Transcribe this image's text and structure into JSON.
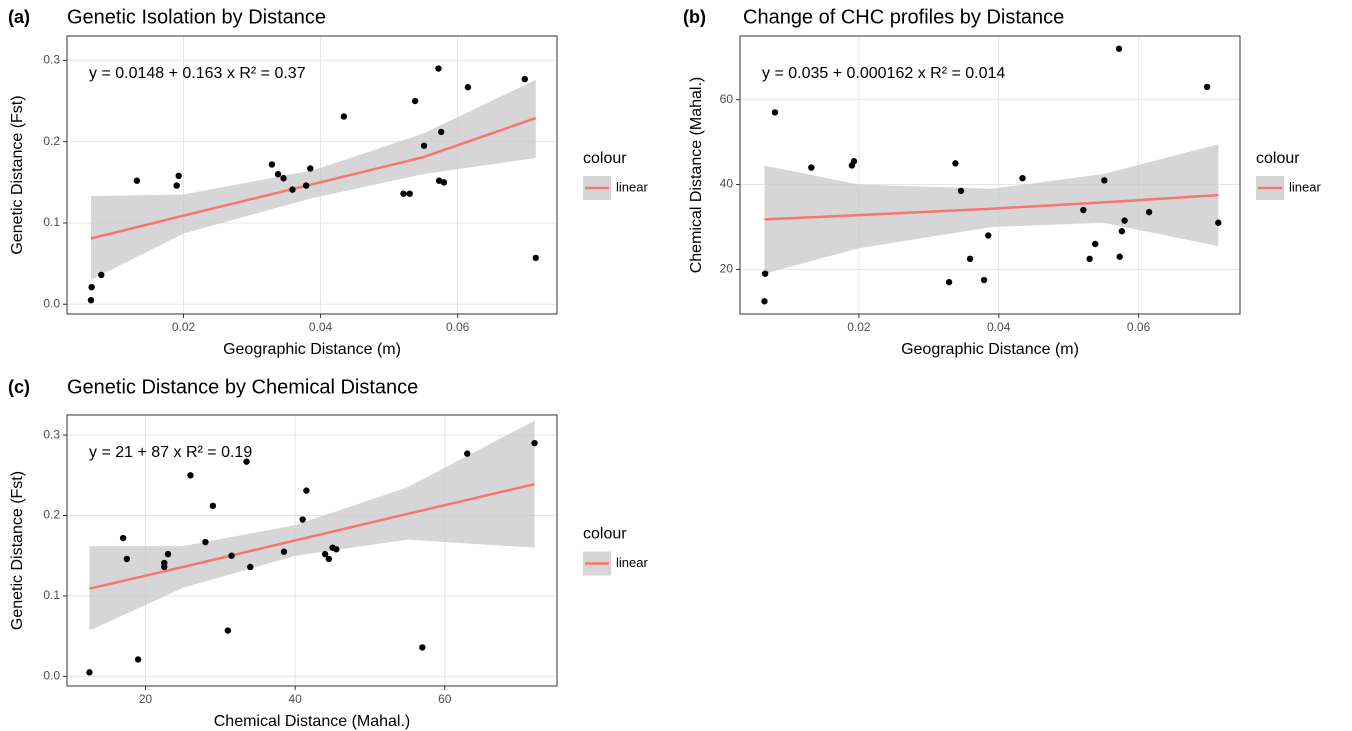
{
  "chart_data": [
    {
      "type": "scatter",
      "panel": "(a)",
      "title": "Genetic Isolation by Distance",
      "x_label": "Geographic Distance (m)",
      "y_label": "Genetic Distance (Fst)",
      "equation": "y = 0.0148 + 0.163 x   R² = 0.37",
      "x": [
        0.0065,
        0.0066,
        0.008,
        0.0132,
        0.019,
        0.0193,
        0.0329,
        0.0338,
        0.0346,
        0.0359,
        0.0379,
        0.0385,
        0.0434,
        0.0521,
        0.053,
        0.0538,
        0.0551,
        0.0572,
        0.0573,
        0.0576,
        0.058,
        0.0615,
        0.0698,
        0.0714
      ],
      "values": [
        0.005,
        0.021,
        0.036,
        0.152,
        0.146,
        0.158,
        0.172,
        0.16,
        0.155,
        0.141,
        0.146,
        0.167,
        0.231,
        0.136,
        0.136,
        0.25,
        0.195,
        0.29,
        0.152,
        0.212,
        0.15,
        0.267,
        0.277,
        0.057
      ],
      "color": "#000000",
      "fit": {
        "name": "linear",
        "color": "#f8766d",
        "x": [
          0.0065,
          0.02,
          0.039,
          0.055,
          0.0714
        ],
        "values": [
          0.081,
          0.109,
          0.148,
          0.181,
          0.229
        ],
        "lower": [
          0.03,
          0.087,
          0.131,
          0.16,
          0.18
        ],
        "upper": [
          0.133,
          0.135,
          0.165,
          0.21,
          0.276
        ],
        "band_color": "#c8c8c8"
      },
      "legend_title": "colour",
      "xlim": [
        0.003,
        0.0745
      ],
      "xticks": [
        0.02,
        0.04,
        0.06
      ],
      "ylim": [
        -0.012,
        0.33
      ],
      "yticks": [
        {
          "value": 0,
          "label": "0.0"
        },
        0.1,
        0.2,
        0.3
      ],
      "grid": true
    },
    {
      "type": "scatter",
      "panel": "(b)",
      "title": "Change of CHC profiles by Distance",
      "x_label": "Geographic Distance (m)",
      "y_label": "Chemical Distance (Mahal.)",
      "equation": "y = 0.035 + 0.000162 x   R² = 0.014",
      "x": [
        0.0065,
        0.0066,
        0.008,
        0.0132,
        0.019,
        0.0193,
        0.0329,
        0.0338,
        0.0346,
        0.0359,
        0.0379,
        0.0385,
        0.0434,
        0.0521,
        0.053,
        0.0538,
        0.0551,
        0.0572,
        0.0573,
        0.0576,
        0.058,
        0.0615,
        0.0698,
        0.0714
      ],
      "values": [
        12.5,
        19,
        57,
        44,
        44.5,
        45.5,
        17,
        45,
        38.5,
        22.5,
        17.5,
        28,
        41.5,
        34,
        22.5,
        26,
        41,
        72,
        23,
        29,
        31.5,
        33.5,
        63,
        31
      ],
      "color": "#000000",
      "fit": {
        "name": "linear",
        "color": "#f8766d",
        "x": [
          0.0065,
          0.02,
          0.039,
          0.055,
          0.0714
        ],
        "values": [
          31.8,
          32.8,
          34.3,
          35.8,
          37.5
        ],
        "lower": [
          19,
          25,
          30,
          31,
          25.5
        ],
        "upper": [
          44.5,
          40,
          39,
          42.5,
          49.5
        ],
        "band_color": "#c8c8c8"
      },
      "legend_title": "colour",
      "xlim": [
        0.003,
        0.0745
      ],
      "xticks": [
        0.02,
        0.04,
        0.06
      ],
      "ylim": [
        9.5,
        75
      ],
      "yticks": [
        20,
        40,
        60
      ],
      "grid": true
    },
    {
      "type": "scatter",
      "panel": "(c)",
      "title": "Genetic Distance by Chemical Distance",
      "x_label": "Chemical Distance (Mahal.)",
      "y_label": "Genetic Distance (Fst)",
      "equation": "y = 21 + 87 x   R² = 0.19",
      "x": [
        12.5,
        19,
        57,
        44,
        44.5,
        45.5,
        17,
        45,
        38.5,
        22.5,
        17.5,
        28,
        41.5,
        34,
        22.5,
        26,
        41,
        72,
        23,
        29,
        31.5,
        33.5,
        63,
        31
      ],
      "values": [
        0.005,
        0.021,
        0.036,
        0.152,
        0.146,
        0.158,
        0.172,
        0.16,
        0.155,
        0.141,
        0.146,
        0.167,
        0.231,
        0.136,
        0.136,
        0.25,
        0.195,
        0.29,
        0.152,
        0.212,
        0.15,
        0.267,
        0.277,
        0.057
      ],
      "color": "#000000",
      "fit": {
        "name": "linear",
        "color": "#f8766d",
        "x": [
          12.5,
          25,
          40,
          55,
          72
        ],
        "values": [
          0.109,
          0.136,
          0.169,
          0.202,
          0.239
        ],
        "lower": [
          0.057,
          0.11,
          0.15,
          0.17,
          0.16
        ],
        "upper": [
          0.162,
          0.162,
          0.188,
          0.235,
          0.318
        ],
        "band_color": "#c8c8c8"
      },
      "legend_title": "colour",
      "xlim": [
        9.5,
        75
      ],
      "xticks": [
        20,
        40,
        60
      ],
      "ylim": [
        -0.012,
        0.325
      ],
      "yticks": [
        {
          "value": 0,
          "label": "0.0"
        },
        0.1,
        0.2,
        0.3
      ],
      "grid": true
    }
  ]
}
